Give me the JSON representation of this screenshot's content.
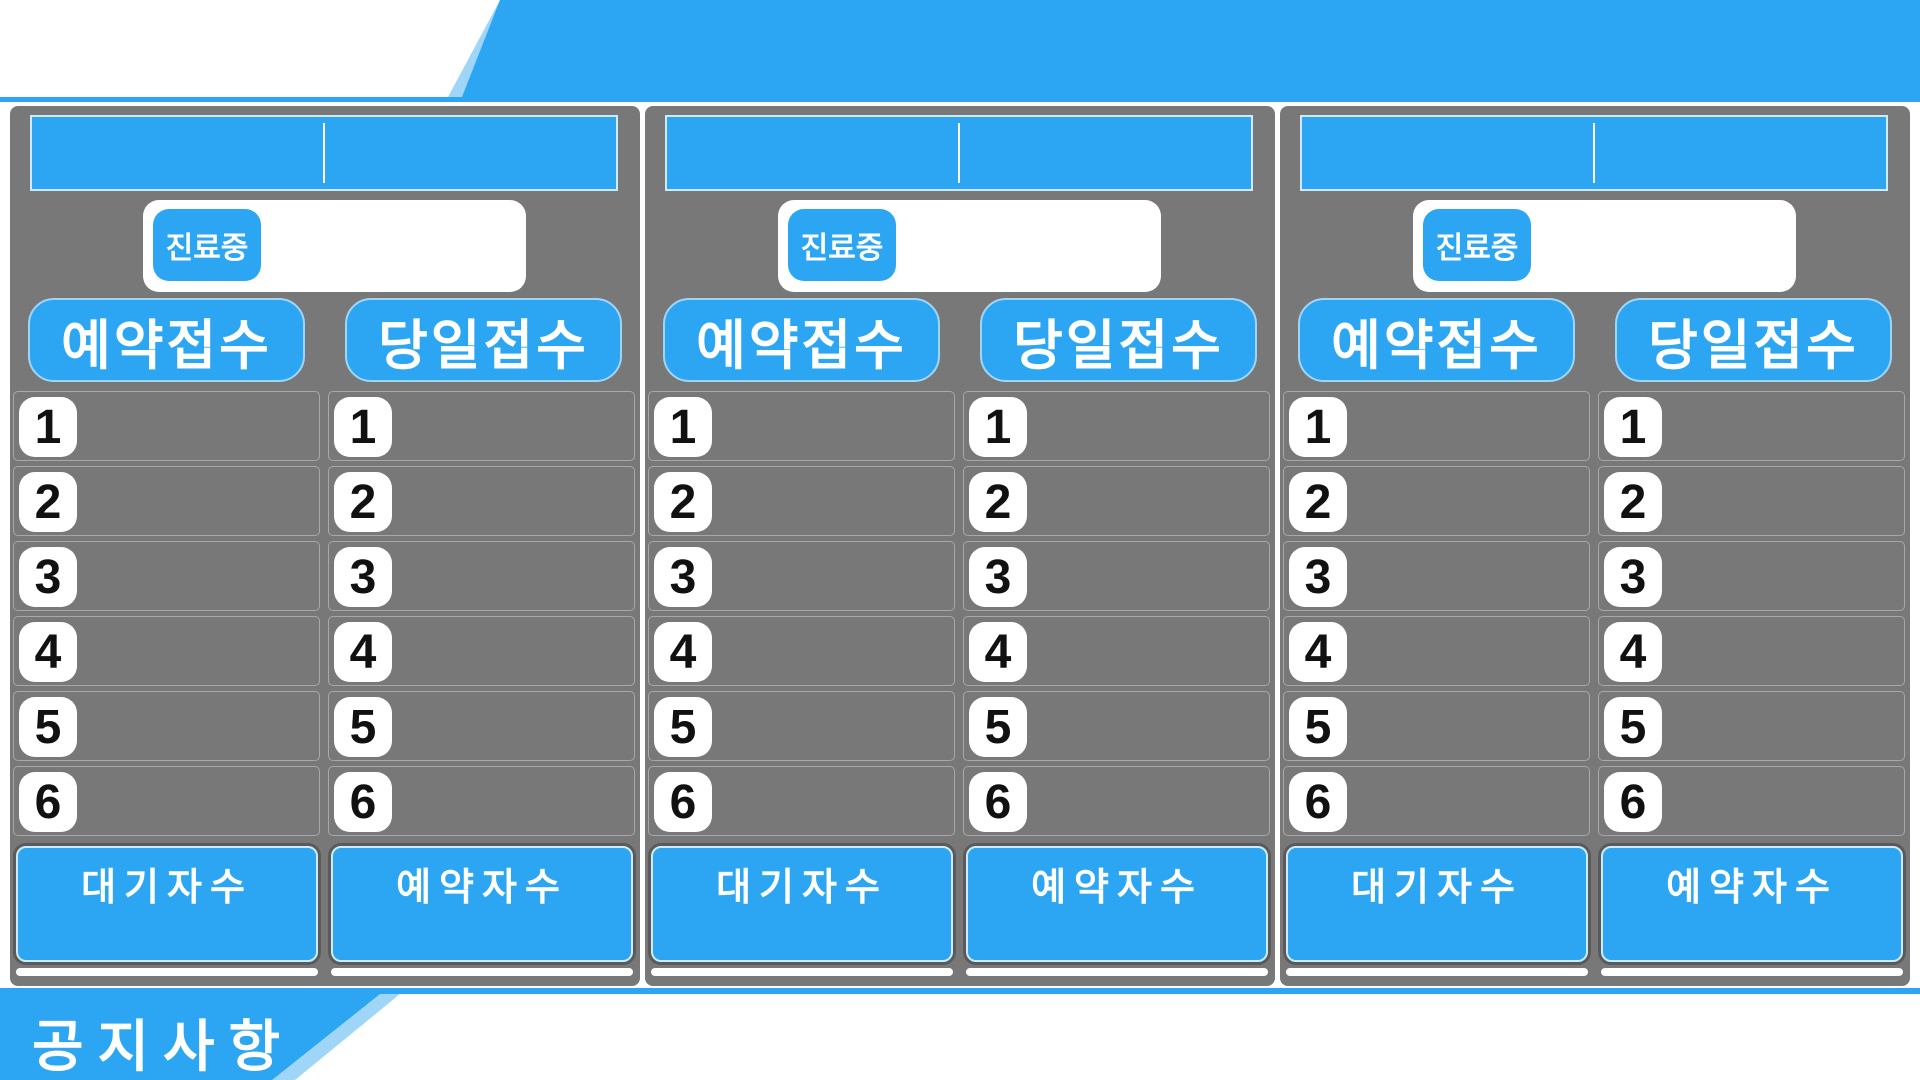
{
  "header": {
    "logo_text": "",
    "title": ""
  },
  "panels": [
    {
      "title_left": "",
      "title_right": "",
      "status_label": "진료중",
      "status_value": "",
      "reservation_header": "예약접수",
      "sameday_header": "당일접수",
      "reservation_rows": [
        {
          "num": "1",
          "name": ""
        },
        {
          "num": "2",
          "name": ""
        },
        {
          "num": "3",
          "name": ""
        },
        {
          "num": "4",
          "name": ""
        },
        {
          "num": "5",
          "name": ""
        },
        {
          "num": "6",
          "name": ""
        }
      ],
      "sameday_rows": [
        {
          "num": "1",
          "name": ""
        },
        {
          "num": "2",
          "name": ""
        },
        {
          "num": "3",
          "name": ""
        },
        {
          "num": "4",
          "name": ""
        },
        {
          "num": "5",
          "name": ""
        },
        {
          "num": "6",
          "name": ""
        }
      ],
      "waiting_label": "대기자수",
      "waiting_value": "",
      "reserved_label": "예약자수",
      "reserved_value": ""
    },
    {
      "title_left": "",
      "title_right": "",
      "status_label": "진료중",
      "status_value": "",
      "reservation_header": "예약접수",
      "sameday_header": "당일접수",
      "reservation_rows": [
        {
          "num": "1",
          "name": ""
        },
        {
          "num": "2",
          "name": ""
        },
        {
          "num": "3",
          "name": ""
        },
        {
          "num": "4",
          "name": ""
        },
        {
          "num": "5",
          "name": ""
        },
        {
          "num": "6",
          "name": ""
        }
      ],
      "sameday_rows": [
        {
          "num": "1",
          "name": ""
        },
        {
          "num": "2",
          "name": ""
        },
        {
          "num": "3",
          "name": ""
        },
        {
          "num": "4",
          "name": ""
        },
        {
          "num": "5",
          "name": ""
        },
        {
          "num": "6",
          "name": ""
        }
      ],
      "waiting_label": "대기자수",
      "waiting_value": "",
      "reserved_label": "예약자수",
      "reserved_value": ""
    },
    {
      "title_left": "",
      "title_right": "",
      "status_label": "진료중",
      "status_value": "",
      "reservation_header": "예약접수",
      "sameday_header": "당일접수",
      "reservation_rows": [
        {
          "num": "1",
          "name": ""
        },
        {
          "num": "2",
          "name": ""
        },
        {
          "num": "3",
          "name": ""
        },
        {
          "num": "4",
          "name": ""
        },
        {
          "num": "5",
          "name": ""
        },
        {
          "num": "6",
          "name": ""
        }
      ],
      "sameday_rows": [
        {
          "num": "1",
          "name": ""
        },
        {
          "num": "2",
          "name": ""
        },
        {
          "num": "3",
          "name": ""
        },
        {
          "num": "4",
          "name": ""
        },
        {
          "num": "5",
          "name": ""
        },
        {
          "num": "6",
          "name": ""
        }
      ],
      "waiting_label": "대기자수",
      "waiting_value": "",
      "reserved_label": "예약자수",
      "reserved_value": ""
    }
  ],
  "footer": {
    "notice_title": "공지사항",
    "notice_text": ""
  },
  "colors": {
    "accent": "#2ca6f2",
    "accent_light": "#9fd6f8",
    "panel_bg": "#787878",
    "row_border": "#a8a8a8",
    "badge_bg": "#ffffff"
  }
}
